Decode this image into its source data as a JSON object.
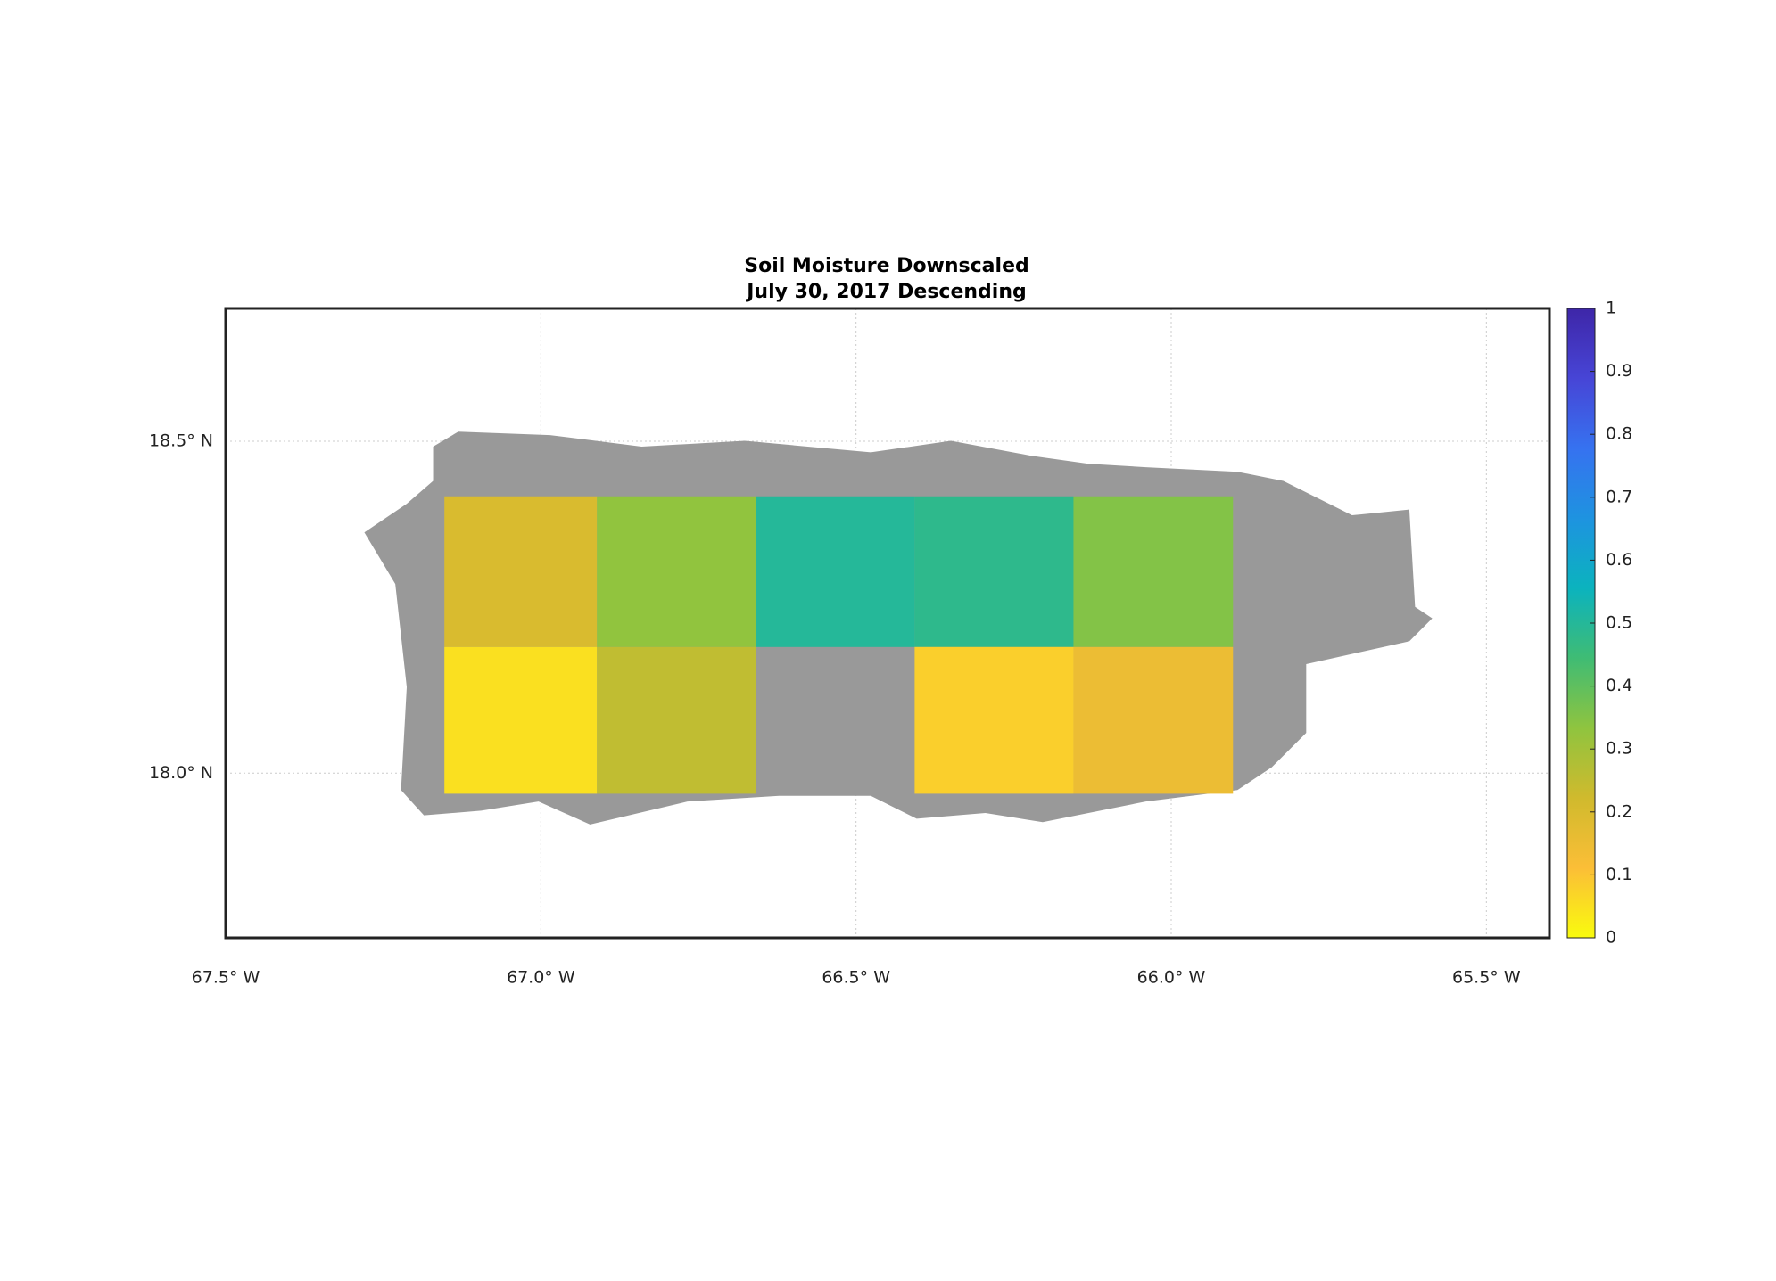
{
  "chart_data": {
    "type": "heatmap",
    "title": "Soil Moisture Downscaled",
    "subtitle": "July 30, 2017 Descending",
    "x_edges": [
      -67.153,
      -66.911,
      -66.658,
      -66.407,
      -66.155,
      -65.902
    ],
    "y_edges": [
      18.417,
      18.19,
      17.969
    ],
    "values": [
      [
        0.2,
        0.33,
        0.5,
        0.48,
        0.35
      ],
      [
        0.05,
        0.25,
        null,
        0.08,
        0.15
      ]
    ],
    "xlim": [
      -67.5,
      -65.4
    ],
    "ylim": [
      17.752,
      18.7
    ],
    "xticks": [
      {
        "value": -67.5,
        "label": "67.5° W"
      },
      {
        "value": -67.0,
        "label": "67.0° W"
      },
      {
        "value": -66.5,
        "label": "66.5° W"
      },
      {
        "value": -66.0,
        "label": "66.0° W"
      },
      {
        "value": -65.5,
        "label": "65.5° W"
      }
    ],
    "yticks": [
      {
        "value": 18.0,
        "label": "18.0° N"
      },
      {
        "value": 18.5,
        "label": "18.5° N"
      }
    ],
    "grid": true,
    "clim": [
      0,
      1
    ],
    "cticks": [
      0,
      0.1,
      0.2,
      0.3,
      0.4,
      0.5,
      0.6,
      0.7,
      0.8,
      0.9,
      1
    ],
    "colormap": [
      "#f9fb0e",
      "#fbbe37",
      "#d0ba2d",
      "#8fc43f",
      "#3fbc74",
      "#0bb3be",
      "#1e93e0",
      "#3672f0",
      "#4745d6",
      "#3e26a8"
    ]
  }
}
